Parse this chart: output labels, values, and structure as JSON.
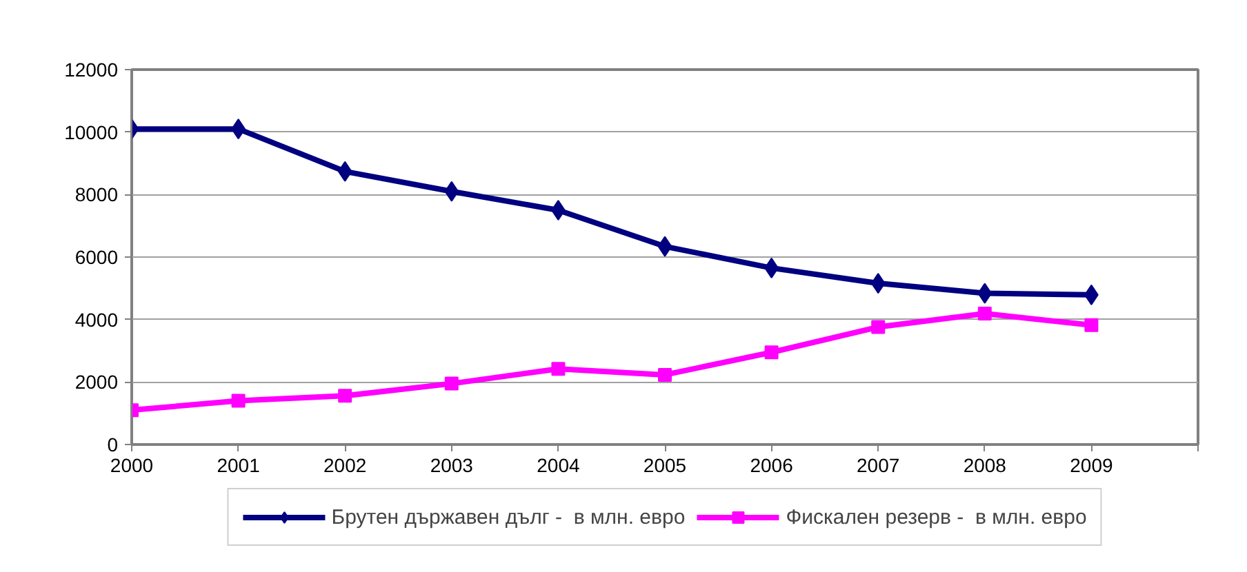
{
  "chart_data": {
    "type": "line",
    "x": [
      2000,
      2001,
      2002,
      2003,
      2004,
      2005,
      2006,
      2007,
      2008,
      2009
    ],
    "xlim": [
      2000,
      2010
    ],
    "xticks": [
      2000,
      2001,
      2002,
      2003,
      2004,
      2005,
      2006,
      2007,
      2008,
      2009,
      {
        "value": 2010,
        "label": null
      }
    ],
    "ylim": [
      0,
      12000
    ],
    "yticks": [
      0,
      2000,
      4000,
      6000,
      8000,
      10000,
      12000
    ],
    "grid": "y",
    "legend": "bottom",
    "line_style": "solid",
    "series": [
      {
        "name": "Брутен държавен дълг -  в млн. евро",
        "color": "#000080",
        "marker": "diamond",
        "values": [
          10100,
          10100,
          8740,
          8100,
          7500,
          6340,
          5650,
          5160,
          4840,
          4790
        ]
      },
      {
        "name": "Фискален резерв -  в млн. евро",
        "color": "#ff00ff",
        "marker": "square",
        "values": [
          1100,
          1400,
          1560,
          1950,
          2420,
          2230,
          2950,
          3760,
          4190,
          3820
        ]
      }
    ]
  }
}
